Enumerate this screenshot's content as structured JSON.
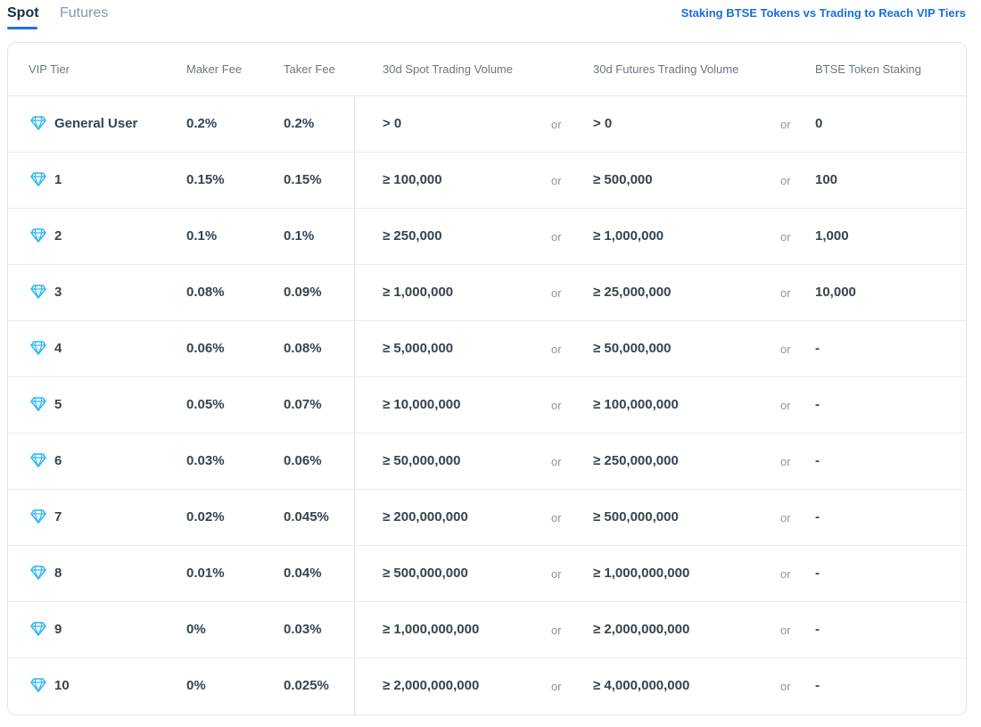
{
  "tabs": {
    "spot": "Spot",
    "futures": "Futures"
  },
  "link_text": "Staking BTSE Tokens vs Trading to Reach VIP Tiers",
  "colors": {
    "accent": "#1a73e8",
    "link": "#1a6fd6",
    "gem": "#29b6f6"
  },
  "icons": {
    "tier": "diamond-icon"
  },
  "headers": {
    "tier": "VIP Tier",
    "maker": "Maker Fee",
    "taker": "Taker Fee",
    "spot": "30d Spot Trading Volume",
    "futures": "30d Futures Trading Volume",
    "staking": "BTSE Token Staking"
  },
  "or_label": "or",
  "rows": [
    {
      "tier": "General User",
      "maker": "0.2%",
      "taker": "0.2%",
      "spot": "> 0",
      "futures": "> 0",
      "staking": "0"
    },
    {
      "tier": "1",
      "maker": "0.15%",
      "taker": "0.15%",
      "spot": "≥ 100,000",
      "futures": "≥ 500,000",
      "staking": "100"
    },
    {
      "tier": "2",
      "maker": "0.1%",
      "taker": "0.1%",
      "spot": "≥ 250,000",
      "futures": "≥ 1,000,000",
      "staking": "1,000"
    },
    {
      "tier": "3",
      "maker": "0.08%",
      "taker": "0.09%",
      "spot": "≥ 1,000,000",
      "futures": "≥ 25,000,000",
      "staking": "10,000"
    },
    {
      "tier": "4",
      "maker": "0.06%",
      "taker": "0.08%",
      "spot": "≥ 5,000,000",
      "futures": "≥ 50,000,000",
      "staking": "-"
    },
    {
      "tier": "5",
      "maker": "0.05%",
      "taker": "0.07%",
      "spot": "≥ 10,000,000",
      "futures": "≥ 100,000,000",
      "staking": "-"
    },
    {
      "tier": "6",
      "maker": "0.03%",
      "taker": "0.06%",
      "spot": "≥ 50,000,000",
      "futures": "≥ 250,000,000",
      "staking": "-"
    },
    {
      "tier": "7",
      "maker": "0.02%",
      "taker": "0.045%",
      "spot": "≥ 200,000,000",
      "futures": "≥ 500,000,000",
      "staking": "-"
    },
    {
      "tier": "8",
      "maker": "0.01%",
      "taker": "0.04%",
      "spot": "≥ 500,000,000",
      "futures": "≥ 1,000,000,000",
      "staking": "-"
    },
    {
      "tier": "9",
      "maker": "0%",
      "taker": "0.03%",
      "spot": "≥ 1,000,000,000",
      "futures": "≥ 2,000,000,000",
      "staking": "-"
    },
    {
      "tier": "10",
      "maker": "0%",
      "taker": "0.025%",
      "spot": "≥ 2,000,000,000",
      "futures": "≥ 4,000,000,000",
      "staking": "-"
    }
  ]
}
